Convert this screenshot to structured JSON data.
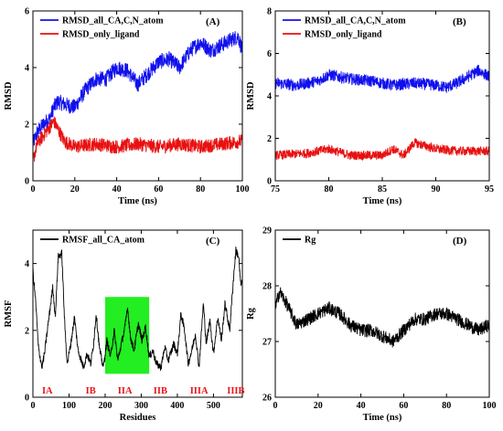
{
  "chart_data": [
    {
      "type": "line",
      "panel_label": "(A)",
      "xlabel": "Time (ns)",
      "ylabel": "RMSD",
      "xlim": [
        0,
        100
      ],
      "ylim": [
        0,
        6
      ],
      "xticks": [
        0,
        20,
        40,
        60,
        80,
        100
      ],
      "yticks": [
        0,
        2,
        4,
        6
      ],
      "legend_position": "top-left",
      "series": [
        {
          "name": "RMSD_all_CA,C,N_atom",
          "color": "#1010ee",
          "x": [
            0,
            2,
            5,
            8,
            10,
            12,
            15,
            20,
            25,
            30,
            35,
            40,
            45,
            50,
            55,
            60,
            65,
            70,
            75,
            80,
            85,
            90,
            95,
            98,
            100
          ],
          "y": [
            1.3,
            1.7,
            2.0,
            2.2,
            2.6,
            2.8,
            2.7,
            2.6,
            3.2,
            3.6,
            3.6,
            4.0,
            3.9,
            3.4,
            3.8,
            4.2,
            4.3,
            4.0,
            4.6,
            4.9,
            4.6,
            4.8,
            5.0,
            5.1,
            4.6
          ],
          "noise": 0.28
        },
        {
          "name": "RMSD_only_ligand",
          "color": "#e81010",
          "x": [
            0,
            2,
            5,
            10,
            15,
            20,
            30,
            40,
            50,
            60,
            70,
            80,
            90,
            100
          ],
          "y": [
            0.7,
            1.3,
            1.6,
            2.1,
            1.4,
            1.2,
            1.3,
            1.2,
            1.3,
            1.2,
            1.3,
            1.2,
            1.3,
            1.4
          ],
          "noise": 0.25
        }
      ]
    },
    {
      "type": "line",
      "panel_label": "(B)",
      "xlabel": "Time (ns)",
      "ylabel": "RMSD",
      "xlim": [
        75,
        95
      ],
      "ylim": [
        0,
        8
      ],
      "xticks": [
        75,
        80,
        85,
        90,
        95
      ],
      "yticks": [
        0,
        2,
        4,
        6,
        8
      ],
      "legend_position": "top-left",
      "series": [
        {
          "name": "RMSD_all_CA,C,N_atom",
          "color": "#1010ee",
          "x": [
            75,
            77,
            79,
            80,
            82,
            84,
            86,
            88,
            90,
            91,
            92,
            93,
            94,
            95
          ],
          "y": [
            4.6,
            4.5,
            4.7,
            5.0,
            4.8,
            4.7,
            4.5,
            4.6,
            4.5,
            4.4,
            4.6,
            4.9,
            5.2,
            4.9
          ],
          "noise": 0.28
        },
        {
          "name": "RMSD_only_ligand",
          "color": "#e81010",
          "x": [
            75,
            78,
            80,
            82,
            85,
            86,
            87,
            88,
            90,
            92,
            95
          ],
          "y": [
            1.2,
            1.3,
            1.5,
            1.2,
            1.2,
            1.5,
            1.2,
            1.8,
            1.5,
            1.4,
            1.4
          ],
          "noise": 0.22
        }
      ]
    },
    {
      "type": "line",
      "panel_label": "(C)",
      "xlabel": "Residues",
      "ylabel": "RMSF",
      "xlim": [
        0,
        580
      ],
      "ylim": [
        0,
        5
      ],
      "xticks": [
        0,
        100,
        200,
        300,
        400,
        500
      ],
      "yticks": [
        0,
        2,
        4
      ],
      "legend_position": "top-left",
      "highlight": {
        "x0": 200,
        "x1": 322,
        "y0": 0.7,
        "y1": 3.0,
        "color": "#22ee22"
      },
      "region_labels": [
        {
          "text": "IA",
          "x": 40,
          "y": 0.22
        },
        {
          "text": "IB",
          "x": 160,
          "y": 0.22
        },
        {
          "text": "IIA",
          "x": 255,
          "y": 0.22
        },
        {
          "text": "IIB",
          "x": 353,
          "y": 0.22
        },
        {
          "text": "IIIA",
          "x": 460,
          "y": 0.22
        },
        {
          "text": "IIIB",
          "x": 562,
          "y": 0.22
        }
      ],
      "series": [
        {
          "name": "RMSF_all_CA_atom",
          "color": "#000000",
          "x": [
            0,
            8,
            15,
            25,
            32,
            40,
            55,
            62,
            70,
            80,
            88,
            95,
            105,
            115,
            125,
            140,
            150,
            160,
            168,
            175,
            185,
            195,
            205,
            215,
            225,
            235,
            245,
            255,
            262,
            270,
            280,
            292,
            302,
            312,
            322,
            332,
            342,
            355,
            365,
            375,
            390,
            400,
            410,
            420,
            430,
            440,
            450,
            460,
            472,
            480,
            490,
            500,
            512,
            522,
            532,
            545,
            555,
            562,
            570,
            575,
            580
          ],
          "y": [
            3.8,
            2.8,
            1.5,
            0.9,
            1.3,
            2.0,
            3.3,
            2.4,
            4.2,
            4.3,
            2.2,
            1.0,
            1.6,
            2.4,
            1.4,
            0.9,
            1.3,
            1.0,
            1.6,
            2.5,
            1.4,
            0.9,
            1.7,
            1.2,
            2.0,
            1.1,
            1.6,
            2.1,
            2.7,
            1.8,
            1.4,
            2.2,
            1.7,
            2.1,
            1.2,
            1.4,
            1.0,
            0.9,
            1.5,
            1.1,
            1.6,
            1.3,
            2.5,
            2.0,
            1.0,
            1.4,
            1.9,
            0.9,
            2.8,
            1.6,
            2.3,
            1.3,
            2.4,
            1.7,
            2.8,
            2.0,
            3.5,
            4.4,
            4.2,
            3.4,
            3.4
          ],
          "noise": 0.12
        }
      ]
    },
    {
      "type": "line",
      "panel_label": "(D)",
      "xlabel": "Time (ns)",
      "ylabel": "Rg",
      "xlim": [
        0,
        100
      ],
      "ylim": [
        26,
        29
      ],
      "xticks": [
        0,
        20,
        40,
        60,
        80,
        100
      ],
      "yticks": [
        26,
        27,
        28,
        29
      ],
      "legend_position": "top-left",
      "series": [
        {
          "name": "Rg",
          "color": "#000000",
          "x": [
            0,
            2,
            5,
            10,
            15,
            20,
            25,
            30,
            35,
            40,
            45,
            50,
            55,
            60,
            65,
            70,
            75,
            80,
            85,
            90,
            95,
            100
          ],
          "y": [
            27.6,
            27.9,
            27.7,
            27.3,
            27.4,
            27.5,
            27.6,
            27.5,
            27.3,
            27.2,
            27.2,
            27.1,
            27.0,
            27.2,
            27.4,
            27.4,
            27.5,
            27.5,
            27.4,
            27.3,
            27.2,
            27.3
          ],
          "noise": 0.12
        }
      ]
    }
  ]
}
